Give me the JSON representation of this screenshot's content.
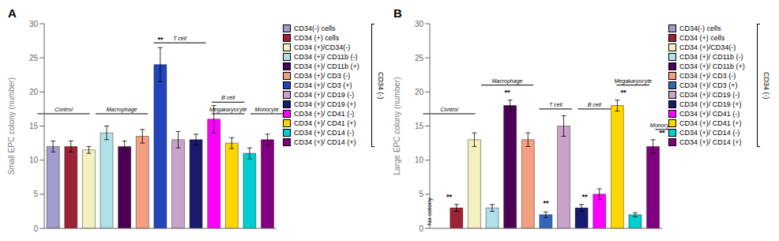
{
  "chart_data": [
    {
      "type": "bar",
      "title": "A",
      "ylabel": "Small EPC colony (number)",
      "categories": [
        "CD34(-) cells",
        "CD34 (+) cells",
        "CD34 (+)/CD34(-)",
        "CD34 (+)/ CD11b (-)",
        "CD34 (+)/ CD11b (+)",
        "CD34 (+)/ CD3 (-)",
        "CD34 (+)/ CD3 (+)",
        "CD34 (+)/ CD19 (-)",
        "CD34 (+)/ CD19 (+)",
        "CD34 (+)/ CD41 (-)",
        "CD34 (+)/ CD41 (+)",
        "CD34 (+)/ CD14 (-)",
        "CD34 (+)/ CD14 (+)"
      ],
      "values": [
        12,
        12,
        11.5,
        14,
        12,
        13.5,
        24,
        13,
        13,
        16,
        12.5,
        11,
        13
      ],
      "errors": [
        0.8,
        0.8,
        0.5,
        1.0,
        0.8,
        1.0,
        2.5,
        1.2,
        0.8,
        2.0,
        0.8,
        0.8,
        0.8
      ],
      "colors": [
        "#A09CCC",
        "#9B2335",
        "#F5F0C0",
        "#B0E0E6",
        "#4B0055",
        "#F4A080",
        "#2244BB",
        "#C8A2C8",
        "#1A1A6E",
        "#FF00FF",
        "#FFD700",
        "#00CED1",
        "#800080"
      ],
      "ylim": [
        0,
        30
      ],
      "yticks": [
        0,
        5,
        10,
        15,
        20,
        25,
        30
      ],
      "legend": "right",
      "tick_labels": "y",
      "legend_title": "CD34 (-)",
      "significance": [
        {
          "text": "**",
          "category": "CD34 (+)/ CD3 (+)",
          "y": 27.2
        }
      ],
      "annotations": [],
      "groups": [
        {
          "label": "Control",
          "from": "CD34(-) cells",
          "to": "CD34 (+)/CD34(-)",
          "y": 16.8
        },
        {
          "label": "Macrophage",
          "from": "CD34 (+)/ CD11b (-)",
          "to": "CD34 (+)/ CD3 (-)",
          "y": 16.8
        },
        {
          "label": "T cell",
          "from": "CD34 (+)/ CD3 (+)",
          "to": "CD34 (+)/ CD19 (+)",
          "y": 27.2
        },
        {
          "label": "B cell",
          "from": "CD34 (+)/ CD41 (-)",
          "to": "CD34 (+)/ CD41 (+)",
          "y": 18.5
        },
        {
          "label": "Megakaryocyte",
          "from": "CD34 (+)/ CD41 (-)",
          "to": "CD34 (+)/ CD41 (+)",
          "y": 16.8
        },
        {
          "label": "Monocyte",
          "from": "CD34 (+)/ CD14 (-)",
          "to": "CD34 (+)/ CD14 (+)",
          "y": 16.8
        }
      ]
    },
    {
      "type": "bar",
      "title": "B",
      "ylabel": "Large EPC colony (number)",
      "categories": [
        "CD34(-) cells",
        "CD34 (+) cells",
        "CD34 (+)/CD34(-)",
        "CD34 (+)/ CD11b (-)",
        "CD34 (+)/ CD11b (+)",
        "CD34 (+)/ CD3 (-)",
        "CD34 (+)/ CD3 (+)",
        "CD34 (+)/ CD19 (-)",
        "CD34 (+)/ CD19 (+)",
        "CD34 (+)/ CD41 (-)",
        "CD34 (+)/ CD41 (+)",
        "CD34 (+)/ CD14 (-)",
        "CD34 (+)/ CD14 (+)"
      ],
      "values": [
        0,
        3,
        13,
        3,
        18,
        13,
        2,
        15,
        3,
        5,
        18,
        2,
        12
      ],
      "errors": [
        0,
        0.5,
        1.0,
        0.5,
        0.8,
        1.0,
        0.4,
        1.5,
        0.5,
        0.8,
        0.8,
        0.3,
        1.0
      ],
      "colors": [
        "#A09CCC",
        "#9B2335",
        "#F5F0C0",
        "#B0E0E6",
        "#4B0055",
        "#F4A080",
        "#3366BB",
        "#C8A2C8",
        "#1A1A6E",
        "#FF00FF",
        "#FFD700",
        "#00CED1",
        "#800080"
      ],
      "ylim": [
        0,
        30
      ],
      "yticks": [
        0,
        5,
        10,
        15,
        20,
        25,
        30
      ],
      "legend": "right",
      "tick_labels": "y",
      "legend_title": "CD34 (-)",
      "significance": [
        {
          "text": "**",
          "category": "CD34 (+) cells",
          "y": 4.2
        },
        {
          "text": "**",
          "category": "CD34 (+)/ CD11b (+)",
          "y": 19.5
        },
        {
          "text": "**",
          "category": "CD34 (+)/ CD3 (+)",
          "y": 3.2
        },
        {
          "text": "**",
          "category": "CD34 (+)/ CD19 (+)",
          "y": 4.2
        },
        {
          "text": "**",
          "category": "CD34 (+)/ CD41 (+)",
          "y": 19.5
        },
        {
          "text": "**",
          "category": "CD34 (+)/ CD14 (+)",
          "y": 13.5
        }
      ],
      "annotations": [
        {
          "text": "No colony",
          "category": "CD34(-) cells",
          "y": 0.4
        }
      ],
      "groups": [
        {
          "label": "Control",
          "from": "CD34(-) cells",
          "to": "CD34 (+)/CD34(-)",
          "y": 16.8
        },
        {
          "label": "Macrophage",
          "from": "CD34 (+)/ CD11b (-)",
          "to": "CD34 (+)/ CD3 (-)",
          "y": 21.0
        },
        {
          "label": "T cell",
          "from": "CD34 (+)/ CD3 (+)",
          "to": "CD34 (+)/ CD19 (-)",
          "y": 17.5
        },
        {
          "label": "B cell",
          "from": "CD34 (+)/ CD19 (+)",
          "to": "CD34 (+)/ CD41 (-)",
          "y": 17.5
        },
        {
          "label": "Megakaryocyte",
          "from": "CD34 (+)/ CD41 (+)",
          "to": "CD34 (+)/ CD14 (-)",
          "y": 21.0
        },
        {
          "label": "Monocyte",
          "from": "CD34 (+)/ CD14 (+)",
          "to": "CD34 (+)/ CD14 (+)",
          "y": 14.5
        }
      ]
    }
  ]
}
